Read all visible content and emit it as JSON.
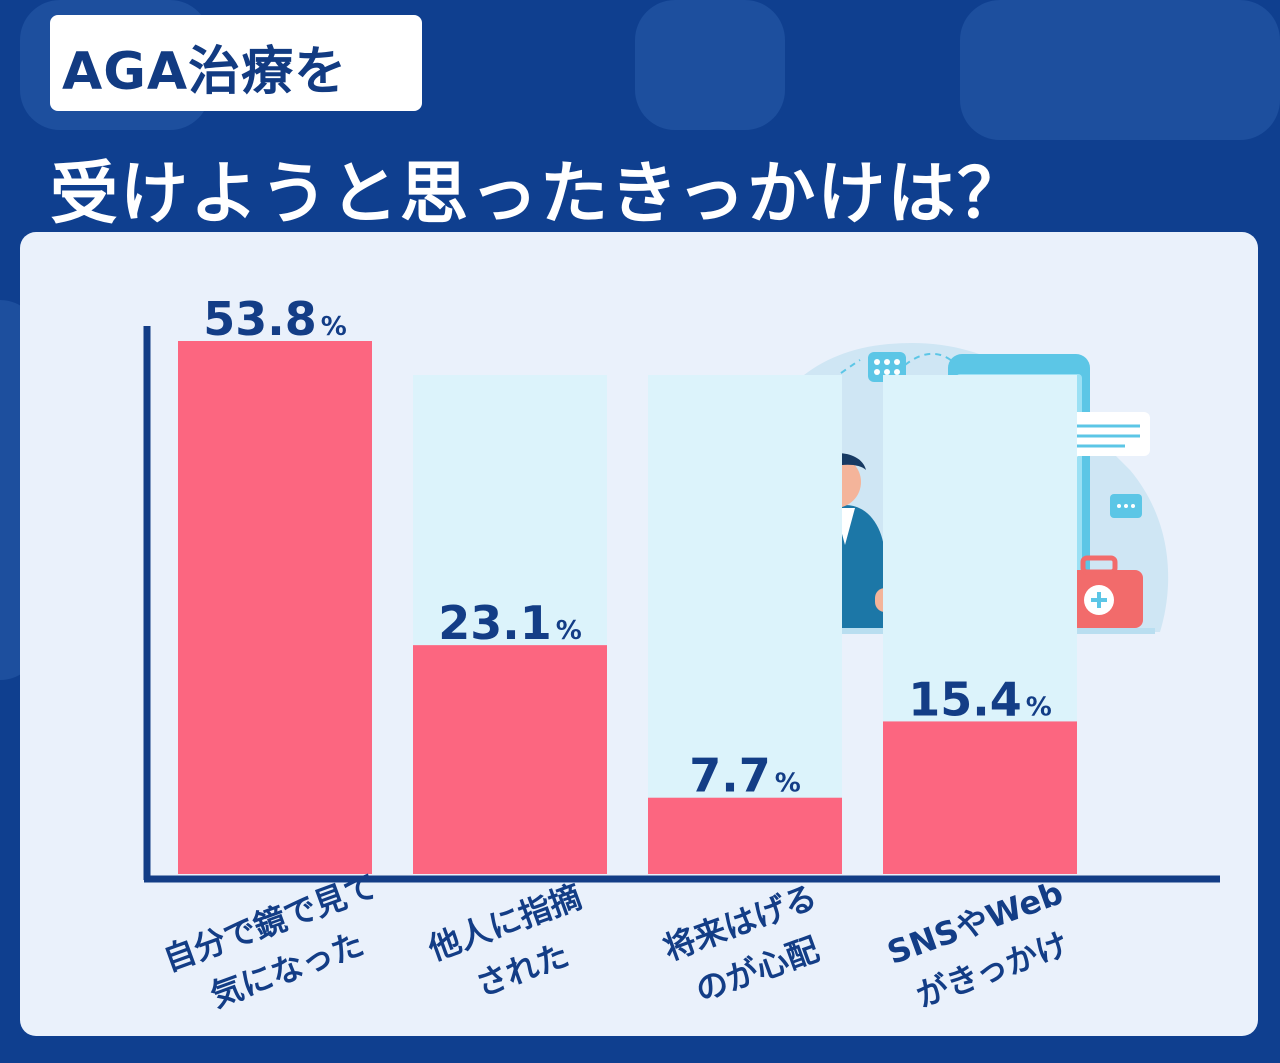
{
  "header": {
    "tag": "AGA治療を",
    "title": "受けようと思ったきっかけは？"
  },
  "chart_data": {
    "type": "bar",
    "categories": [
      [
        "自分で鏡で見て",
        "気になった"
      ],
      [
        "他人に指摘",
        "された"
      ],
      [
        "将来はげる",
        "のが心配"
      ],
      [
        "SNSやWeb",
        "がきっかけ"
      ]
    ],
    "values": [
      53.8,
      23.1,
      7.7,
      15.4
    ],
    "value_labels": [
      "53.8",
      "23.1",
      "7.7",
      "15.4"
    ],
    "unit": "%",
    "ylim": [
      0,
      53.8
    ],
    "grid": false,
    "colors": {
      "bar": "#fc6680",
      "bar_track": "#dcf3fb",
      "axis": "#133d86",
      "label": "#133d86"
    }
  },
  "illustration": {
    "icons": [
      "doctor-icon",
      "patient-icon",
      "smartphone-icon",
      "medical-kit-icon",
      "chat-bubble-icon",
      "pill-icon",
      "plus-icon"
    ]
  }
}
